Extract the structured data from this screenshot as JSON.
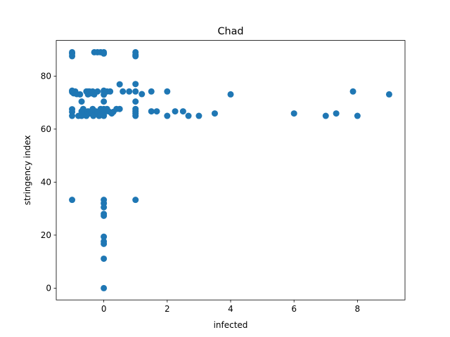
{
  "chart_data": {
    "type": "scatter",
    "title": "Chad",
    "xlabel": "infected",
    "ylabel": "stringency index",
    "xlim": [
      -1.5,
      9.5
    ],
    "ylim": [
      -4.45,
      93.45
    ],
    "xticks": [
      0,
      2,
      4,
      6,
      8
    ],
    "yticks": [
      0,
      20,
      40,
      60,
      80
    ],
    "grid": false,
    "marker_color": "#1f77b4",
    "series": [
      {
        "points": [
          [
            -1,
            89
          ],
          [
            -1,
            88.5
          ],
          [
            -1,
            87.5
          ],
          [
            -1,
            74.5
          ],
          [
            -1,
            74
          ],
          [
            -1,
            67.5
          ],
          [
            -1,
            66.5
          ],
          [
            -1,
            65
          ],
          [
            -1,
            33.3
          ],
          [
            -0.95,
            73.5
          ],
          [
            -0.9,
            74.2
          ],
          [
            -0.85,
            73.2
          ],
          [
            -0.8,
            65
          ],
          [
            -0.75,
            73.1
          ],
          [
            -0.7,
            70.4
          ],
          [
            -0.7,
            66.7
          ],
          [
            -0.7,
            65
          ],
          [
            -0.65,
            67.6
          ],
          [
            -0.6,
            66.5
          ],
          [
            -0.55,
            65
          ],
          [
            -0.55,
            74.2
          ],
          [
            -0.5,
            74.2
          ],
          [
            -0.5,
            73.1
          ],
          [
            -0.5,
            66.7
          ],
          [
            -0.45,
            74.2
          ],
          [
            -0.45,
            65.9
          ],
          [
            -0.4,
            73.5
          ],
          [
            -0.4,
            66.5
          ],
          [
            -0.35,
            74.2
          ],
          [
            -0.35,
            67.6
          ],
          [
            -0.33,
            65
          ],
          [
            -0.3,
            89
          ],
          [
            -0.3,
            73.1
          ],
          [
            -0.25,
            66.7
          ],
          [
            -0.2,
            89
          ],
          [
            -0.2,
            74.2
          ],
          [
            -0.2,
            66.5
          ],
          [
            -0.15,
            65
          ],
          [
            -0.1,
            89
          ],
          [
            -0.1,
            67.6
          ],
          [
            -0.05,
            66.7
          ],
          [
            0,
            89
          ],
          [
            0,
            88.5
          ],
          [
            0,
            74.5
          ],
          [
            0,
            74
          ],
          [
            0,
            73
          ],
          [
            0,
            70.4
          ],
          [
            0,
            67.6
          ],
          [
            0,
            66.7
          ],
          [
            0,
            65.9
          ],
          [
            0,
            65
          ],
          [
            0,
            33.3
          ],
          [
            0,
            32
          ],
          [
            0,
            30.5
          ],
          [
            0,
            28
          ],
          [
            0,
            27.3
          ],
          [
            0,
            19.4
          ],
          [
            0,
            17.6
          ],
          [
            0,
            16.7
          ],
          [
            0,
            11.1
          ],
          [
            0,
            0
          ],
          [
            0.1,
            74.2
          ],
          [
            0.1,
            67.6
          ],
          [
            0.15,
            66.7
          ],
          [
            0.2,
            74.2
          ],
          [
            0.25,
            65.9
          ],
          [
            0.3,
            66.5
          ],
          [
            0.4,
            67.6
          ],
          [
            0.5,
            76.9
          ],
          [
            0.5,
            67.6
          ],
          [
            0.6,
            74.2
          ],
          [
            0.8,
            74.2
          ],
          [
            1,
            89
          ],
          [
            1,
            88
          ],
          [
            1,
            87.5
          ],
          [
            1,
            77
          ],
          [
            1,
            74.2
          ],
          [
            1,
            70.4
          ],
          [
            1,
            67.6
          ],
          [
            1,
            66.7
          ],
          [
            1,
            65.9
          ],
          [
            1,
            65
          ],
          [
            1,
            33.3
          ],
          [
            1.2,
            73.2
          ],
          [
            1.5,
            74.2
          ],
          [
            1.5,
            66.7
          ],
          [
            1.67,
            66.7
          ],
          [
            2,
            74.2
          ],
          [
            2,
            65
          ],
          [
            2.25,
            66.7
          ],
          [
            2.5,
            66.7
          ],
          [
            2.67,
            65
          ],
          [
            3,
            65
          ],
          [
            3.5,
            65.9
          ],
          [
            4,
            73.1
          ],
          [
            6,
            65.9
          ],
          [
            7,
            65
          ],
          [
            7.33,
            65.9
          ],
          [
            7.86,
            74.2
          ],
          [
            8,
            65
          ],
          [
            9,
            73.1
          ]
        ]
      }
    ]
  }
}
